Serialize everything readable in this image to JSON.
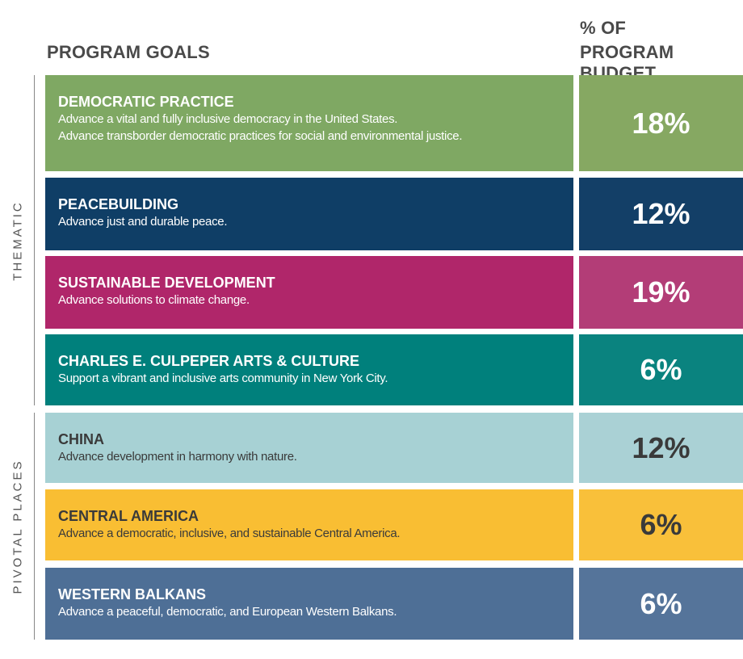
{
  "header": {
    "goals": "PROGRAM GOALS",
    "budget": [
      "% OF",
      "PROGRAM BUDGET"
    ]
  },
  "groups": [
    {
      "label": "THEMATIC",
      "rows": [
        {
          "title": "DEMOCRATIC PRACTICE",
          "lines": [
            "Advance a vital and fully inclusive democracy in the United States.",
            "Advance transborder democratic practices for social and environmental justice."
          ],
          "budget": "18%"
        },
        {
          "title": "PEACEBUILDING",
          "lines": [
            "Advance just and durable peace."
          ],
          "budget": "12%"
        },
        {
          "title": "SUSTAINABLE DEVELOPMENT",
          "lines": [
            "Advance solutions to climate change."
          ],
          "budget": "19%"
        },
        {
          "title": "CHARLES E. CULPEPER ARTS & CULTURE",
          "lines": [
            "Support a vibrant and inclusive arts community in New York City."
          ],
          "budget": "6%"
        }
      ]
    },
    {
      "label": "PIVOTAL PLACES",
      "rows": [
        {
          "title": "CHINA",
          "lines": [
            "Advance development in harmony with nature."
          ],
          "budget": "12%"
        },
        {
          "title": "CENTRAL AMERICA",
          "lines": [
            "Advance a democratic, inclusive, and sustainable Central America."
          ],
          "budget": "6%"
        },
        {
          "title": "WESTERN BALKANS",
          "lines": [
            "Advance a peaceful, democratic, and European Western Balkans."
          ],
          "budget": "6%"
        }
      ]
    }
  ]
}
